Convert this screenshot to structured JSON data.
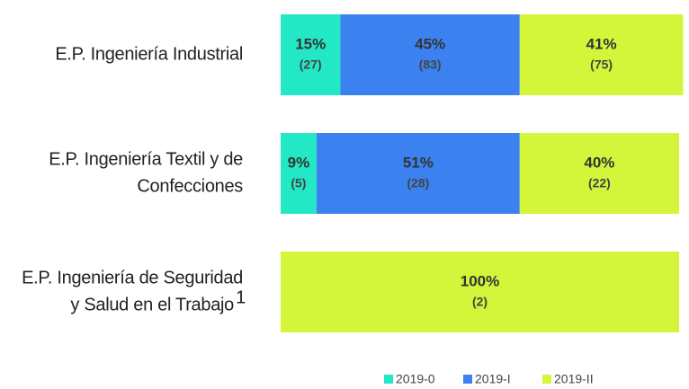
{
  "chart_data": {
    "type": "stacked-bar",
    "categories": [
      [
        "E.P. Ingeniería Industrial"
      ],
      [
        "E.P. Ingeniería Textil y de",
        "Confecciones"
      ],
      [
        "E.P. Ingeniería de Seguridad",
        "y Salud en el Trabajo"
      ]
    ],
    "category_notes": [
      null,
      null,
      "1"
    ],
    "xlim": [
      0,
      100
    ],
    "series": [
      {
        "name": "2019-0",
        "color": "#22e8c6",
        "values": [
          15,
          9,
          null
        ],
        "value_labels": [
          "15%",
          "9%",
          null
        ],
        "counts": [
          27,
          5,
          null
        ],
        "count_labels": [
          "(27)",
          "(5)",
          null
        ]
      },
      {
        "name": "2019-I",
        "color": "#3b82f0",
        "values": [
          45,
          51,
          null
        ],
        "value_labels": [
          "45%",
          "51%",
          null
        ],
        "counts": [
          83,
          28,
          null
        ],
        "count_labels": [
          "(83)",
          "(28)",
          null
        ]
      },
      {
        "name": "2019-II",
        "color": "#d3f53a",
        "values": [
          41,
          40,
          100
        ],
        "value_labels": [
          "41%",
          "40%",
          "100%"
        ],
        "counts": [
          75,
          22,
          2
        ],
        "count_labels": [
          "(75)",
          "(22)",
          "(2)"
        ]
      }
    ],
    "legend": "bottom"
  }
}
